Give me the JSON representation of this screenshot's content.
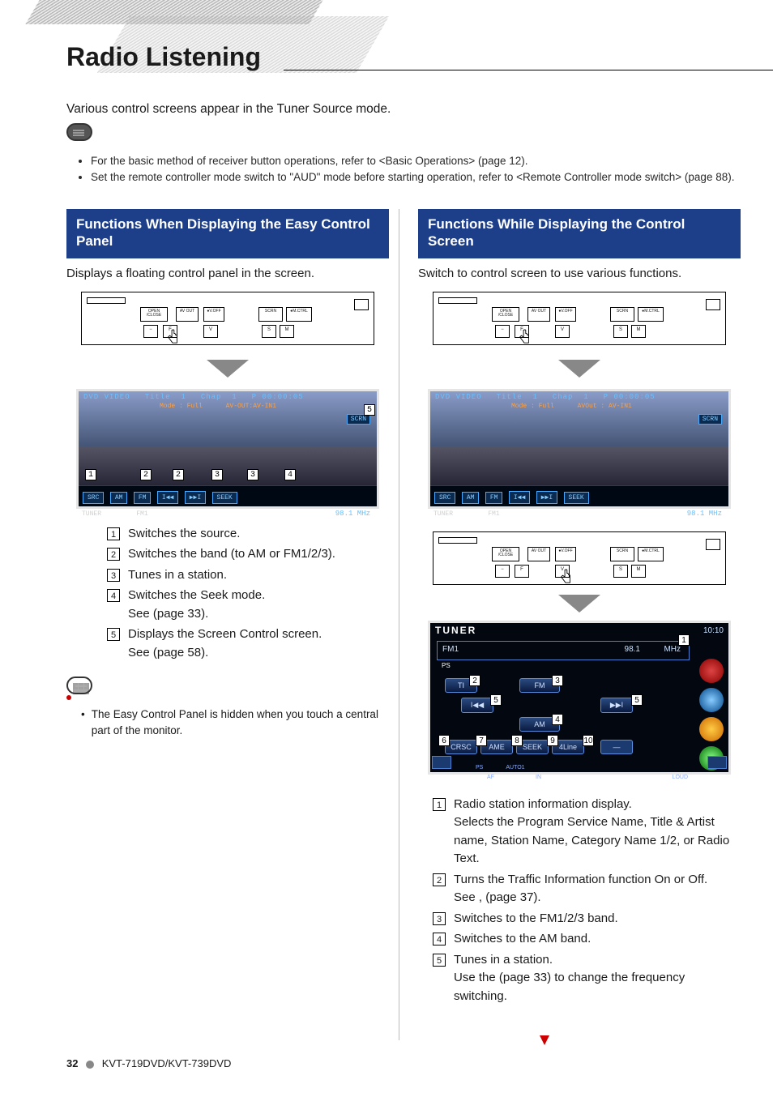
{
  "page": {
    "title": "Radio Listening",
    "intro": "Various control screens appear in the Tuner Source mode.",
    "footer_page": "32",
    "footer_model": "KVT-719DVD/KVT-739DVD"
  },
  "notes": [
    "For the basic method of receiver button operations, refer to <Basic Operations> (page 12).",
    "Set the remote controller mode switch to \"AUD\" mode before starting operation, refer to <Remote Controller mode switch> (page 88)."
  ],
  "faceplate_labels": {
    "open": "OPEN\n/CLOSE",
    "avout": "AV OUT",
    "sel": "●SEL",
    "voff": "●V.OFF",
    "scrn": "SCRN",
    "mctrl": "●M.CTRL",
    "minus": "−",
    "f": "F",
    "v": "V",
    "s": "S",
    "m": "M"
  },
  "dvd": {
    "src": "DVD VIDEO",
    "title_lbl": "Title",
    "title_val": "1",
    "chap_lbl": "Chap",
    "chap_val": "1",
    "time_lbl": "P",
    "time_val": "00:00:05",
    "mode": "Mode : Full",
    "avout_left": "AV-OUT:AV-IN1",
    "avout_right": "AVOut : AV-IN1",
    "scrn": "SCRN",
    "src_btn": "SRC",
    "am": "AM",
    "fm": "FM",
    "prev": "I◀◀",
    "next": "▶▶I",
    "seek": "SEEK",
    "tuner": "TUNER",
    "band": "FM1",
    "freq": "98.1 MHz",
    "in": "IN",
    "att": "ATT"
  },
  "left": {
    "hdr": "Functions When Displaying the Easy Control Panel",
    "lead": "Displays a floating control panel in the screen.",
    "items": [
      {
        "n": "1",
        "t": "Switches the source."
      },
      {
        "n": "2",
        "t": "Switches the band (to AM or FM1/2/3)."
      },
      {
        "n": "3",
        "t": "Tunes in a station."
      },
      {
        "n": "4",
        "t": "Switches the Seek mode.\nSee <Seek Mode> (page 33)."
      },
      {
        "n": "5",
        "t": "Displays the Screen Control screen.\nSee <Screen Control> (page 58)."
      }
    ],
    "subnote": "The Easy Control Panel is hidden when you touch a central part of the monitor."
  },
  "right": {
    "hdr": "Functions While Displaying the Control Screen",
    "lead": "Switch to control screen to use various functions.",
    "tuner": {
      "title": "TUNER",
      "time": "10:10",
      "band": "FM1",
      "freq": "98.1",
      "unit": "MHz",
      "ps": "PS",
      "ti": "TI",
      "fm": "FM",
      "am": "AM",
      "prev": "I◀◀",
      "next": "▶▶I",
      "crsc": "CRSC",
      "ame": "AME",
      "seek": "SEEK",
      "fourline": "4Line",
      "bottom_ps": "PS",
      "bottom_auto": "AUTO1",
      "bottom_af": "AF",
      "bottom_in": "IN",
      "bottom_loud": "LOUD"
    },
    "items": [
      {
        "n": "1",
        "t": "Radio station information display.\nSelects the Program Service Name, Title & Artist name, Station Name, Category Name 1/2, or Radio Text."
      },
      {
        "n": "2",
        "t": "Turns the Traffic Information function On or Off.\nSee <Traffic Information>, (page 37)."
      },
      {
        "n": "3",
        "t": "Switches to the FM1/2/3 band."
      },
      {
        "n": "4",
        "t": "Switches to the AM band."
      },
      {
        "n": "5",
        "t": "Tunes in a station.\nUse the <Seek Mode> (page 33) to change the frequency switching."
      }
    ]
  }
}
